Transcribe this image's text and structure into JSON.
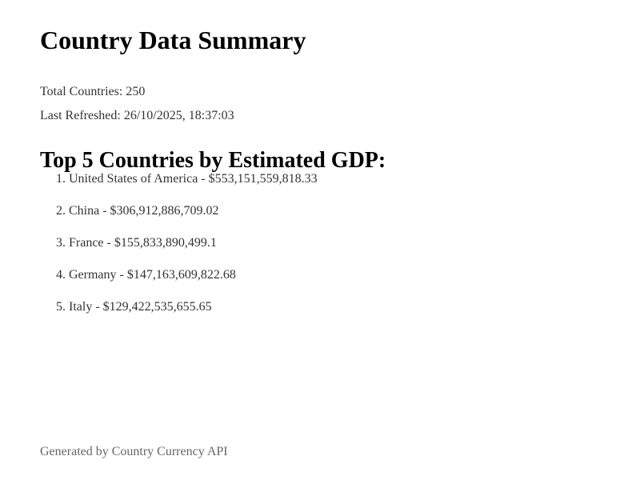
{
  "header": {
    "title": "Country Data Summary"
  },
  "stats": {
    "total_label": "Total Countries:",
    "total_value": "250",
    "refreshed_label": "Last Refreshed:",
    "refreshed_value": "26/10/2025, 18:37:03"
  },
  "top_gdp": {
    "heading": "Top 5 Countries by Estimated GDP:",
    "items": [
      {
        "rank": "1.",
        "country": "United States of America",
        "sep": "-",
        "gdp": "$553,151,559,818.33"
      },
      {
        "rank": "2.",
        "country": "China",
        "sep": "-",
        "gdp": "$306,912,886,709.02"
      },
      {
        "rank": "3.",
        "country": "France",
        "sep": "-",
        "gdp": "$155,833,890,499.1"
      },
      {
        "rank": "4.",
        "country": "Germany",
        "sep": "-",
        "gdp": "$147,163,609,822.68"
      },
      {
        "rank": "5.",
        "country": "Italy",
        "sep": "-",
        "gdp": "$129,422,535,655.65"
      }
    ]
  },
  "footer": {
    "text": "Generated by Country Currency API"
  }
}
